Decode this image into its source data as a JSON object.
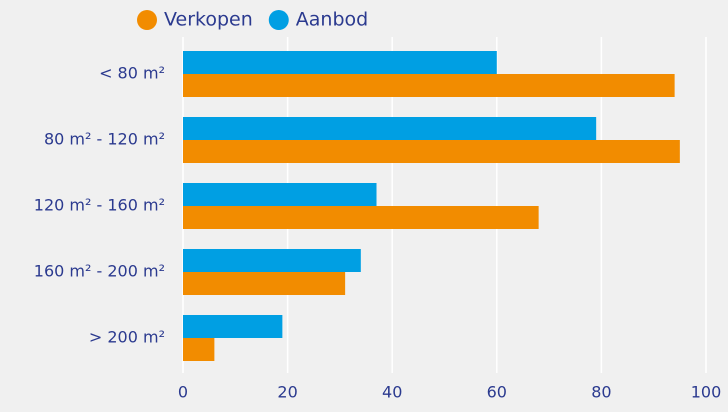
{
  "chart_data": {
    "type": "bar",
    "orientation": "horizontal",
    "categories": [
      "< 80 m²",
      "80 m² - 120 m²",
      "120 m² - 160 m²",
      "160 m² - 200 m²",
      "> 200 m²"
    ],
    "series": [
      {
        "name": "Verkopen",
        "color": "#f28c00",
        "values": [
          94,
          95,
          68,
          31,
          6
        ]
      },
      {
        "name": "Aanbod",
        "color": "#009fe3",
        "values": [
          60,
          79,
          37,
          34,
          19
        ]
      }
    ],
    "xlim": [
      0,
      100
    ],
    "xticks": [
      0,
      20,
      40,
      60,
      80,
      100
    ],
    "grid": true,
    "legend": "top"
  }
}
